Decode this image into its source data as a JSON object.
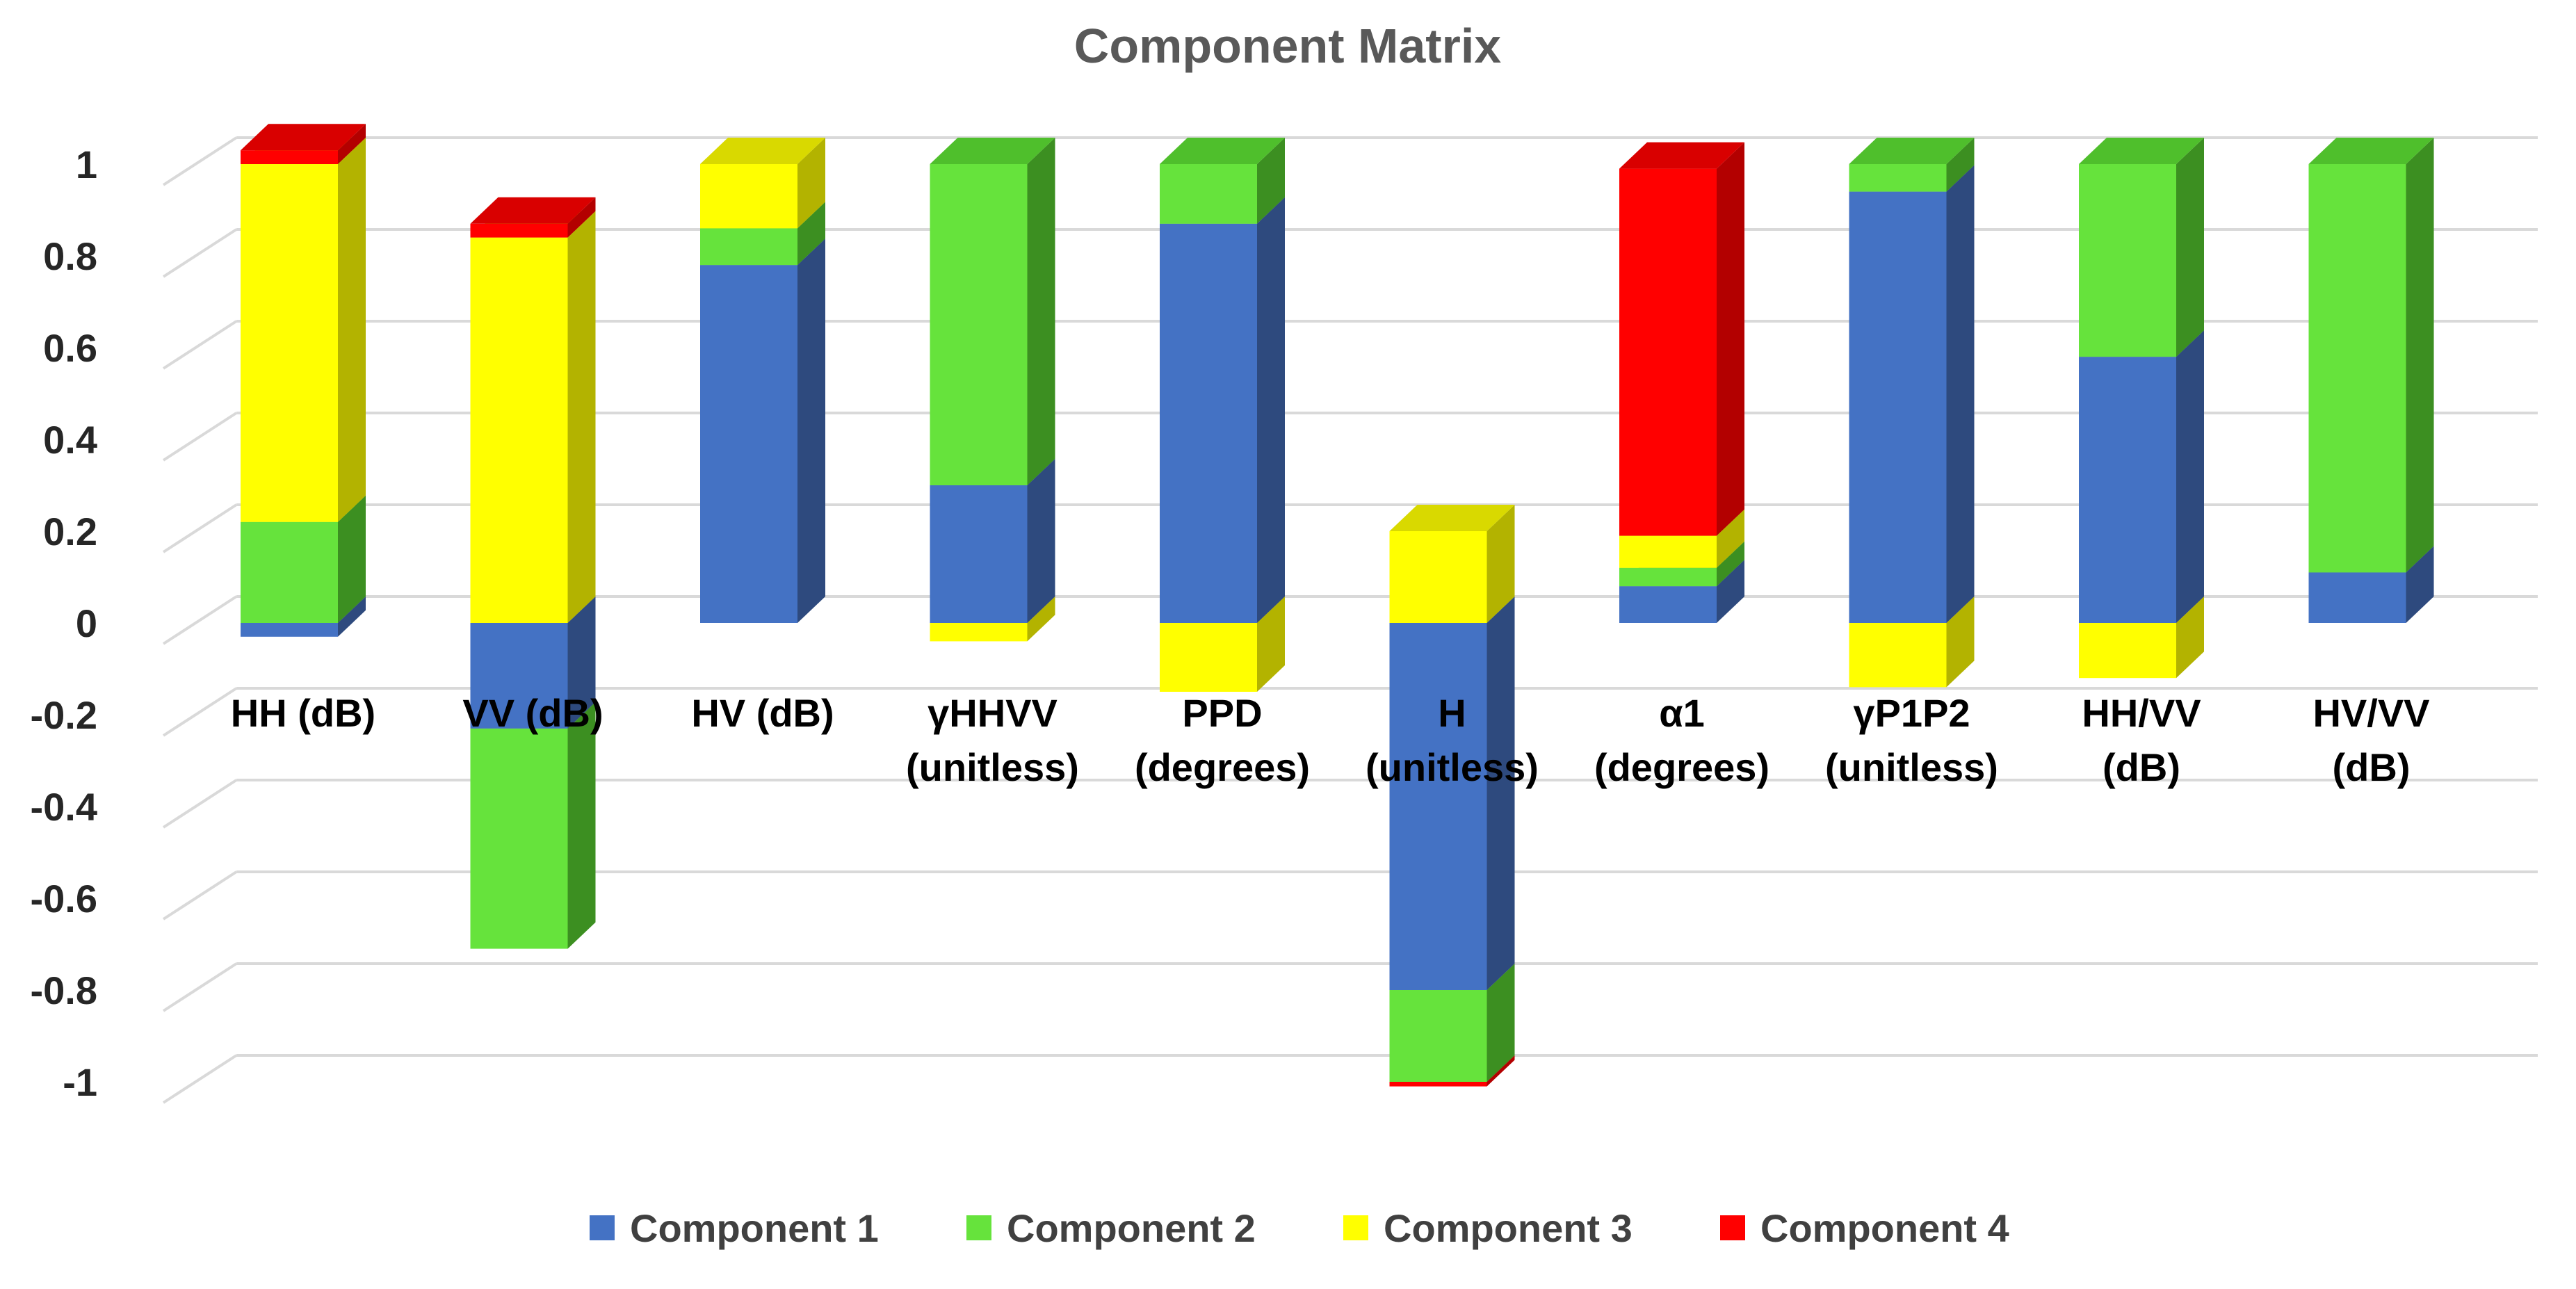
{
  "chart_data": {
    "type": "bar",
    "subtype": "stacked-3d",
    "title": "Component Matrix",
    "xlabel": "",
    "ylabel": "",
    "ylim": [
      -1,
      1
    ],
    "yticks": [
      -1,
      -0.8,
      -0.6,
      -0.4,
      -0.2,
      0,
      0.2,
      0.4,
      0.6,
      0.8,
      1
    ],
    "ytick_labels": [
      "-1",
      "-0.8",
      "-0.6",
      "-0.4",
      "-0.2",
      "0",
      "0.2",
      "0.4",
      "0.6",
      "0.8",
      "1"
    ],
    "categories": [
      [
        "HH (dB)"
      ],
      [
        "VV (dB)"
      ],
      [
        "HV (dB)"
      ],
      [
        "γHHVV",
        "(unitless)"
      ],
      [
        "PPD",
        "(degrees)"
      ],
      [
        "H",
        "(unitless)"
      ],
      [
        "α1",
        "(degrees)"
      ],
      [
        "γP1P2",
        "(unitless)"
      ],
      [
        "HH/VV",
        "(dB)"
      ],
      [
        "HV/VV",
        "(dB)"
      ]
    ],
    "series": [
      {
        "name": "Component 1",
        "color": "#4472C4",
        "side_color": "#2E4A7E",
        "top_color": "#3A62A8",
        "values": [
          -0.03,
          -0.23,
          0.78,
          0.3,
          0.87,
          -0.8,
          0.08,
          0.94,
          0.58,
          0.11
        ]
      },
      {
        "name": "Component 2",
        "color": "#66E33C",
        "side_color": "#3C8F21",
        "top_color": "#4FBF2C",
        "values": [
          0.22,
          -0.48,
          0.08,
          0.7,
          0.13,
          -0.2,
          0.04,
          0.06,
          0.42,
          0.89
        ]
      },
      {
        "name": "Component 3",
        "color": "#FFFF00",
        "side_color": "#B3B300",
        "top_color": "#D9D900",
        "values": [
          0.78,
          0.84,
          0.14,
          -0.04,
          -0.15,
          0.2,
          0.07,
          -0.14,
          -0.12,
          0.0
        ]
      },
      {
        "name": "Component 4",
        "color": "#FF0000",
        "side_color": "#B30000",
        "top_color": "#D90000",
        "values": [
          0.03,
          0.03,
          0.0,
          0.0,
          0.0,
          -0.01,
          0.8,
          0.0,
          0.0,
          0.0
        ]
      }
    ],
    "legend_position": "bottom",
    "grid": true
  }
}
